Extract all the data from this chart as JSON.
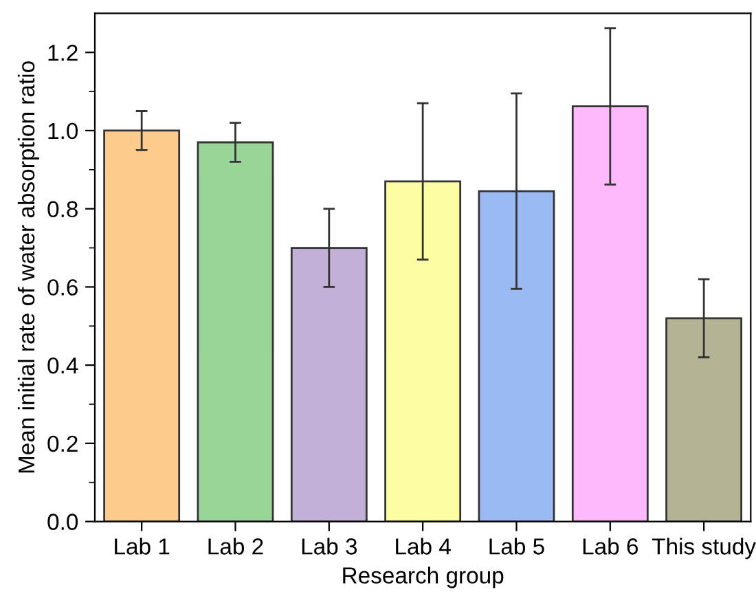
{
  "chart_data": {
    "type": "bar",
    "xlabel": "Research group",
    "ylabel": "Mean initial rate of water absorption ratio",
    "categories": [
      "Lab 1",
      "Lab 2",
      "Lab 3",
      "Lab 4",
      "Lab 5",
      "Lab 6",
      "This study"
    ],
    "values": [
      1.0,
      0.97,
      0.7,
      0.87,
      0.845,
      1.062,
      0.52
    ],
    "errors": [
      0.05,
      0.05,
      0.1,
      0.2,
      0.25,
      0.2,
      0.1
    ],
    "colors": [
      "#fdcb8c",
      "#99d599",
      "#c3b0d6",
      "#fdfda2",
      "#9bbaf4",
      "#fdb9fc",
      "#b4b494"
    ],
    "ylim": [
      0,
      1.3
    ],
    "yticks": [
      {
        "value": 0,
        "label": "0.0"
      },
      0.2,
      0.4,
      0.6,
      0.8,
      {
        "value": 1,
        "label": "1.0"
      },
      1.2
    ],
    "grid": false,
    "legend": false
  }
}
